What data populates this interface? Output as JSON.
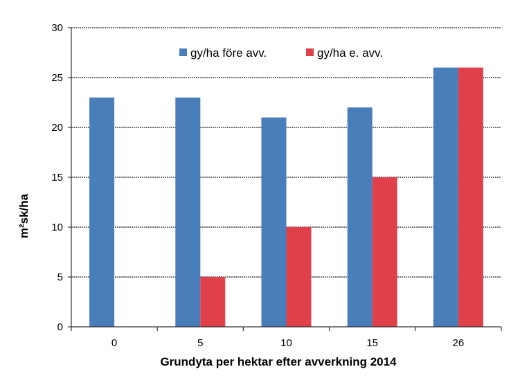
{
  "chart_data": {
    "type": "bar",
    "categories": [
      "0",
      "5",
      "10",
      "15",
      "26"
    ],
    "series": [
      {
        "name": "gy/ha före avv.",
        "values": [
          23,
          23,
          21,
          22,
          26
        ],
        "color": "#4a7ebb"
      },
      {
        "name": "gy/ha e. avv.",
        "values": [
          0,
          5,
          10,
          15,
          26
        ],
        "color": "#e0404a"
      }
    ],
    "xlabel": "Grundyta per hektar efter avverkning 2014",
    "ylabel": "m²sk/ha",
    "ylim": [
      0,
      30
    ],
    "yticks": [
      0,
      5,
      10,
      15,
      20,
      25,
      30
    ],
    "grid": true,
    "legend": "top-center"
  }
}
